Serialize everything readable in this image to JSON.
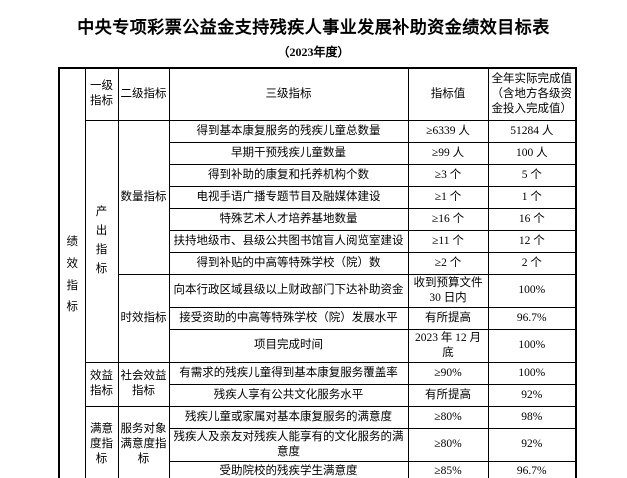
{
  "colors": {
    "text": "#000000",
    "background": "#ffffff",
    "border": "#000000"
  },
  "page": {
    "title": "中央专项彩票公益金支持残疾人事业发展补助资金绩效目标表",
    "subtitle": "（2023年度）"
  },
  "table": {
    "row_group_label": "绩效指标",
    "headers": {
      "level1": "一级指标",
      "level2": "二级指标",
      "level3": "三级指标",
      "target": "指标值",
      "actual": "全年实际完成值（含地方各级资金投入完成值）"
    },
    "rows": [
      {
        "level1": "产出指标",
        "level1_span": 10,
        "level1_vertical": true,
        "level2": "数量指标",
        "level2_span": 7,
        "indicator": "得到基本康复服务的残疾儿童总数量",
        "target": "≥6339 人",
        "actual": "51284 人"
      },
      {
        "indicator": "早期干预残疾儿童数量",
        "target": "≥99 人",
        "actual": "100 人"
      },
      {
        "indicator": "得到补助的康复和托养机构个数",
        "target": "≥3 个",
        "actual": "5 个"
      },
      {
        "indicator": "电视手语广播专题节目及融媒体建设",
        "target": "≥1 个",
        "actual": "1 个"
      },
      {
        "indicator": "特殊艺术人才培养基地数量",
        "target": "≥16 个",
        "actual": "16 个"
      },
      {
        "indicator": "扶持地级市、县级公共图书馆盲人阅览室建设",
        "target": "≥11 个",
        "actual": "12 个"
      },
      {
        "indicator": "得到补贴的中高等特殊学校（院）数",
        "target": "≥2 个",
        "actual": "2 个"
      },
      {
        "level2": "时效指标",
        "level2_span": 3,
        "indicator": "向本行政区域县级以上财政部门下达补助资金",
        "target": "收到预算文件\n30 日内",
        "actual": "100%",
        "tall": true
      },
      {
        "indicator": "接受资助的中高等特殊学校（院）发展水平",
        "target": "有所提高",
        "actual": "96.7%"
      },
      {
        "indicator": "项目完成时间",
        "target": "2023 年 12 月底",
        "actual": "100%"
      },
      {
        "level1": "效益指标",
        "level1_span": 2,
        "level2": "社会效益指标",
        "level2_span": 2,
        "indicator": "有需求的残疾儿童得到基本康复服务覆盖率",
        "target": "≥90%",
        "actual": "100%"
      },
      {
        "indicator": "残疾人享有公共文化服务水平",
        "target": "有所提高",
        "actual": "92%"
      },
      {
        "level1": "满意度指标",
        "level1_span": 3,
        "level2": "服务对象满意度指标",
        "level2_span": 3,
        "indicator": "残疾儿童或家属对基本康复服务的满意度",
        "target": "≥80%",
        "actual": "98%"
      },
      {
        "indicator": "残疾人及亲友对残疾人能享有的文化服务的满意度",
        "target": "≥80%",
        "actual": "92%",
        "tall": true
      },
      {
        "indicator": "受助院校的残疾学生满意度",
        "target": "≥85%",
        "actual": "96.7%"
      }
    ]
  }
}
